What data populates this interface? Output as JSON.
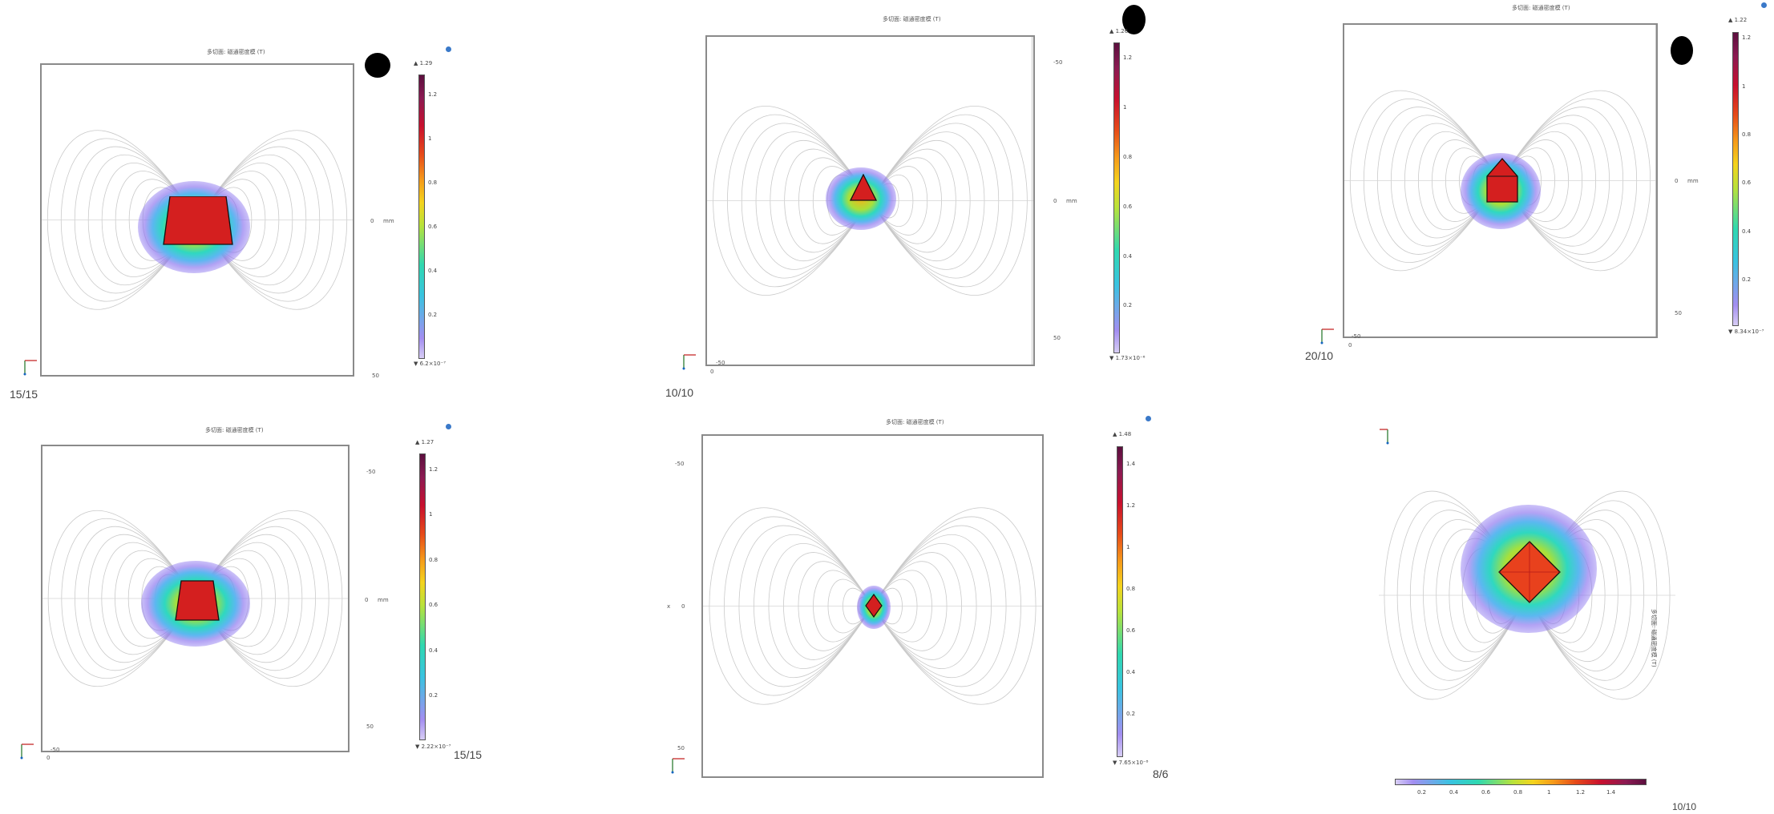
{
  "panels": [
    {
      "title": "多切面: 磁通密度模 (T)",
      "cb_max": "▲ 1.29",
      "cb_min": "▼ 6.2×10⁻⁷",
      "cb_ticks": [
        "1.2",
        "1",
        "0.8",
        "0.6",
        "0.4",
        "0.2"
      ],
      "axis_labels": [
        "0",
        "mm",
        "50"
      ],
      "caption": "15/15"
    },
    {
      "title": "多切面: 磁通密度模 (T)",
      "cb_max": "▲ 1.26",
      "cb_min": "▼ 1.73×10⁻⁶",
      "cb_ticks": [
        "1.2",
        "1",
        "0.8",
        "0.6",
        "0.4",
        "0.2"
      ],
      "axis_labels": [
        "-50",
        "0",
        "mm",
        "50",
        "-50",
        "0"
      ],
      "caption": "10/10"
    },
    {
      "title": "多切面: 磁通密度模 (T)",
      "cb_max": "▲ 1.22",
      "cb_min": "▼ 8.34×10⁻⁷",
      "cb_ticks": [
        "1.2",
        "1",
        "0.8",
        "0.6",
        "0.4",
        "0.2"
      ],
      "axis_labels": [
        "0",
        "mm",
        "50",
        "-50",
        "0"
      ],
      "caption": "20/10"
    },
    {
      "title": "多切面: 磁通密度模 (T)",
      "cb_max": "▲ 1.27",
      "cb_min": "▼ 2.22×10⁻⁷",
      "cb_ticks": [
        "1.2",
        "1",
        "0.8",
        "0.6",
        "0.4",
        "0.2"
      ],
      "axis_labels": [
        "-50",
        "0",
        "mm",
        "50",
        "-50",
        "0"
      ],
      "caption": "15/15"
    },
    {
      "title": "多切面: 磁通密度模 (T)",
      "cb_max": "▲ 1.48",
      "cb_min": "▼ 7.65×10⁻⁸",
      "cb_ticks": [
        "1.4",
        "1.2",
        "1",
        "0.8",
        "0.6",
        "0.4",
        "0.2"
      ],
      "axis_labels": [
        "-50",
        "0",
        "50",
        "x"
      ],
      "caption": "8/6"
    },
    {
      "title": "多切面: 磁通密度模 (T)",
      "cb_ticks": [
        "0.2",
        "0.4",
        "0.6",
        "0.8",
        "1",
        "1.2",
        "1.4"
      ],
      "caption": "10/10"
    }
  ],
  "colors": {
    "frame": "#8a8a8a",
    "field_line": "#c9c9c9",
    "core": "#d41f1f",
    "core_dark": "#a31010",
    "glow": "#8b74ef"
  }
}
